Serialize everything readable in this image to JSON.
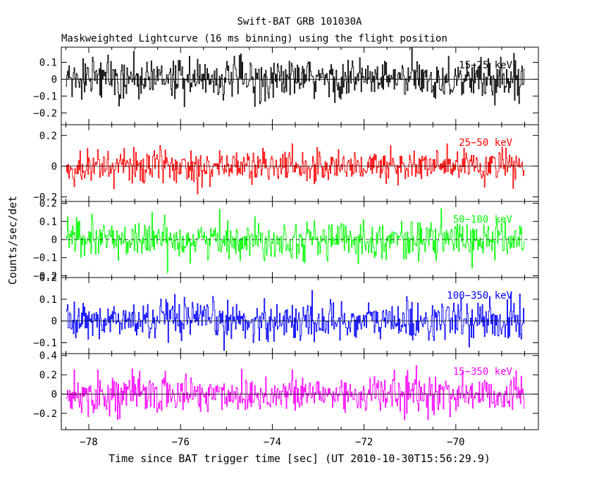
{
  "title": "Swift-BAT GRB 101030A",
  "subtitle": "Maskweighted Lightcurve (16 ms binning) using the flight position",
  "chart_data": {
    "type": "line",
    "xlabel": "Time since BAT trigger time [sec] (UT 2010-10-30T15:56:29.9)",
    "ylabel": "Counts/sec/det",
    "xlim": [
      -78.6,
      -68.2
    ],
    "x_start": -78.5,
    "x_end": -68.5,
    "x_ticks": [
      -78,
      -76,
      -74,
      -72,
      -70
    ],
    "x_tick_labels": [
      "−78",
      "−76",
      "−74",
      "−72",
      "−70"
    ],
    "panels": [
      {
        "name": "15-25 keV",
        "label": "15−25 keV",
        "color": "#000000",
        "ylim": [
          -0.27,
          0.19
        ],
        "yticks": [
          -0.2,
          -0.1,
          0,
          0.1
        ],
        "ytick_labels": [
          "−0.2",
          "−0.1",
          "0",
          "0.1"
        ],
        "noise_sigma": 0.06,
        "zero_dashed": false
      },
      {
        "name": "25-50 keV",
        "label": "25−50 keV",
        "color": "#ff0000",
        "ylim": [
          -0.23,
          0.27
        ],
        "yticks": [
          -0.2,
          0,
          0.2
        ],
        "ytick_labels": [
          "−0.2",
          "0",
          "0.2"
        ],
        "noise_sigma": 0.055,
        "zero_dashed": false
      },
      {
        "name": "50-100 keV",
        "label": "50−100 keV",
        "color": "#00ff00",
        "ylim": [
          -0.21,
          0.21
        ],
        "yticks": [
          -0.2,
          -0.1,
          0,
          0.1,
          0.2
        ],
        "ytick_labels": [
          "−0.2",
          "−0.1",
          "0",
          "0.1",
          "0.2"
        ],
        "noise_sigma": 0.05,
        "zero_dashed": true
      },
      {
        "name": "100-350 keV",
        "label": "100−350 keV",
        "color": "#0000ff",
        "ylim": [
          -0.15,
          0.2
        ],
        "yticks": [
          -0.1,
          0,
          0.1,
          0.2
        ],
        "ytick_labels": [
          "−0.1",
          "0",
          "0.1",
          "0.2"
        ],
        "noise_sigma": 0.045,
        "zero_dashed": false
      },
      {
        "name": "15-350 keV",
        "label": "15−350 keV",
        "color": "#ff00ff",
        "ylim": [
          -0.37,
          0.42
        ],
        "yticks": [
          -0.2,
          0,
          0.2,
          0.4
        ],
        "ytick_labels": [
          "−0.2",
          "0",
          "0.2",
          "0.4"
        ],
        "noise_sigma": 0.1,
        "zero_dashed": false
      }
    ]
  }
}
